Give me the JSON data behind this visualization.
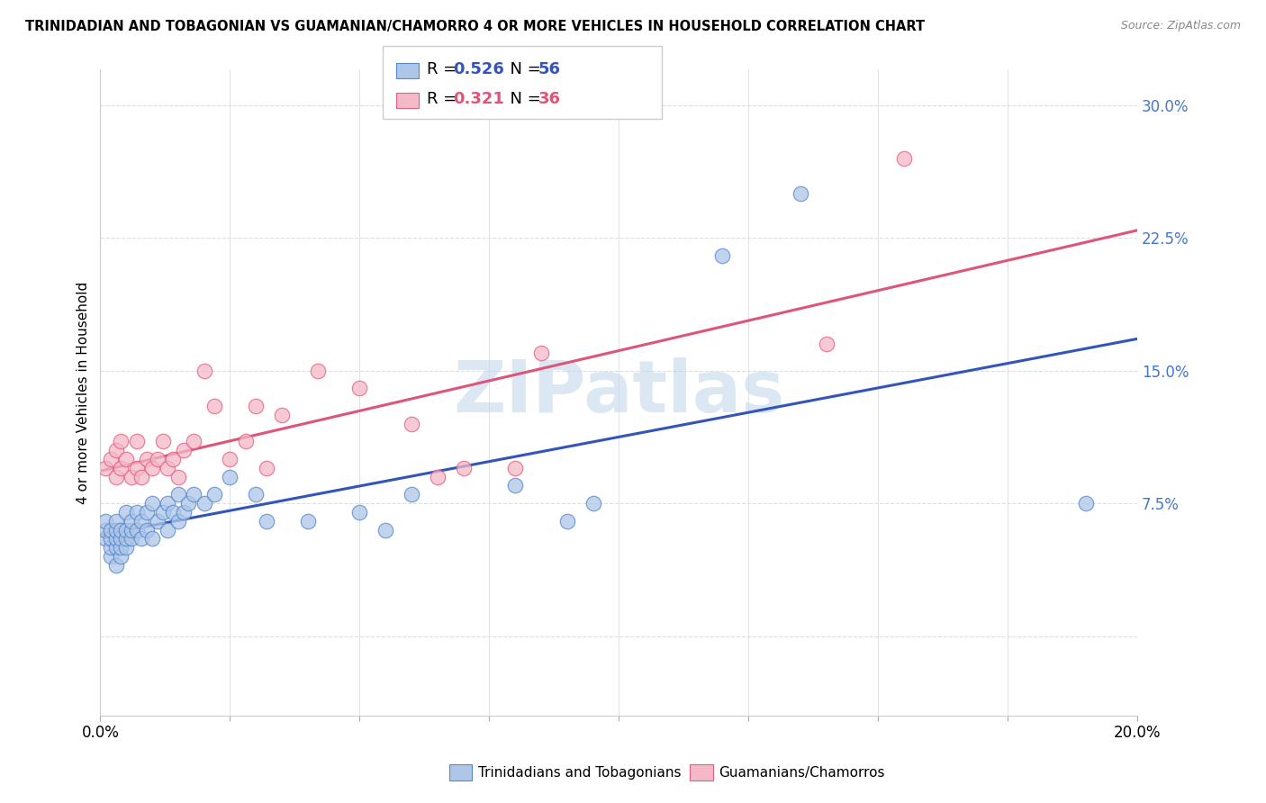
{
  "title": "TRINIDADIAN AND TOBAGONIAN VS GUAMANIAN/CHAMORRO 4 OR MORE VEHICLES IN HOUSEHOLD CORRELATION CHART",
  "source": "Source: ZipAtlas.com",
  "ylabel": "4 or more Vehicles in Household",
  "xlim": [
    0.0,
    0.2
  ],
  "ylim": [
    -0.045,
    0.32
  ],
  "blue_label": "Trinidadians and Tobagonians",
  "pink_label": "Guamanians/Chamorros",
  "blue_R": 0.526,
  "blue_N": 56,
  "pink_R": 0.321,
  "pink_N": 36,
  "blue_color": "#aec6e8",
  "pink_color": "#f4b8c8",
  "blue_edge_color": "#5588cc",
  "pink_edge_color": "#e06080",
  "blue_line_color": "#3355bb",
  "pink_line_color": "#dd5577",
  "watermark_color": "#c5d8ee",
  "grid_color": "#dddddd",
  "ytick_color": "#4477cc",
  "ytick_positions": [
    0.0,
    0.075,
    0.15,
    0.225,
    0.3
  ],
  "ytick_labels": [
    "",
    "7.5%",
    "15.0%",
    "22.5%",
    "30.0%"
  ],
  "xtick_positions": [
    0.0,
    0.025,
    0.05,
    0.075,
    0.1,
    0.125,
    0.15,
    0.175,
    0.2
  ],
  "blue_x": [
    0.001,
    0.001,
    0.001,
    0.002,
    0.002,
    0.002,
    0.002,
    0.003,
    0.003,
    0.003,
    0.003,
    0.003,
    0.004,
    0.004,
    0.004,
    0.004,
    0.005,
    0.005,
    0.005,
    0.005,
    0.006,
    0.006,
    0.006,
    0.007,
    0.007,
    0.008,
    0.008,
    0.009,
    0.009,
    0.01,
    0.01,
    0.011,
    0.012,
    0.013,
    0.013,
    0.014,
    0.015,
    0.015,
    0.016,
    0.017,
    0.018,
    0.02,
    0.022,
    0.025,
    0.03,
    0.032,
    0.04,
    0.05,
    0.055,
    0.06,
    0.08,
    0.09,
    0.095,
    0.12,
    0.135,
    0.19
  ],
  "blue_y": [
    0.055,
    0.06,
    0.065,
    0.045,
    0.05,
    0.055,
    0.06,
    0.04,
    0.05,
    0.055,
    0.06,
    0.065,
    0.045,
    0.05,
    0.055,
    0.06,
    0.05,
    0.055,
    0.06,
    0.07,
    0.055,
    0.06,
    0.065,
    0.06,
    0.07,
    0.055,
    0.065,
    0.06,
    0.07,
    0.055,
    0.075,
    0.065,
    0.07,
    0.06,
    0.075,
    0.07,
    0.065,
    0.08,
    0.07,
    0.075,
    0.08,
    0.075,
    0.08,
    0.09,
    0.08,
    0.065,
    0.065,
    0.07,
    0.06,
    0.08,
    0.085,
    0.065,
    0.075,
    0.215,
    0.25,
    0.075
  ],
  "pink_x": [
    0.001,
    0.002,
    0.003,
    0.003,
    0.004,
    0.004,
    0.005,
    0.006,
    0.007,
    0.007,
    0.008,
    0.009,
    0.01,
    0.011,
    0.012,
    0.013,
    0.014,
    0.015,
    0.016,
    0.018,
    0.02,
    0.022,
    0.025,
    0.028,
    0.03,
    0.032,
    0.035,
    0.042,
    0.05,
    0.06,
    0.065,
    0.07,
    0.08,
    0.085,
    0.14,
    0.155
  ],
  "pink_y": [
    0.095,
    0.1,
    0.09,
    0.105,
    0.095,
    0.11,
    0.1,
    0.09,
    0.095,
    0.11,
    0.09,
    0.1,
    0.095,
    0.1,
    0.11,
    0.095,
    0.1,
    0.09,
    0.105,
    0.11,
    0.15,
    0.13,
    0.1,
    0.11,
    0.13,
    0.095,
    0.125,
    0.15,
    0.14,
    0.12,
    0.09,
    0.095,
    0.095,
    0.16,
    0.165,
    0.27
  ]
}
